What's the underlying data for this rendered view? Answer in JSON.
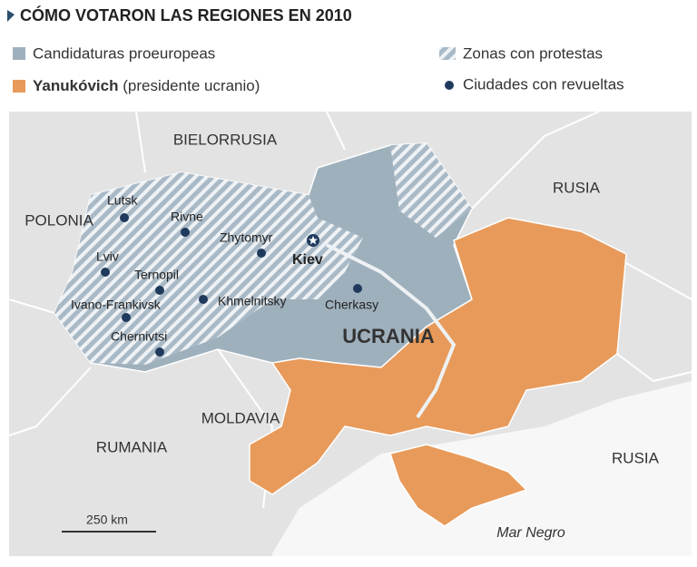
{
  "title": "CÓMO VOTARON LAS REGIONES EN 2010",
  "legend": [
    {
      "label": "Candidaturas proeuropeas"
    },
    {
      "label": "Zonas con protestas"
    },
    {
      "label_bold": "Yanukóvich",
      "label": "(presidente ucranio)"
    },
    {
      "label": "Ciudades con revueltas"
    }
  ],
  "map": {
    "countries": [
      "BIELORRUSIA",
      "RUSIA",
      "POLONIA",
      "MOLDAVIA",
      "RUMANIA",
      "RUSIA"
    ],
    "country": "UCRANIA",
    "capital": "Kiev",
    "cities": [
      "Lutsk",
      "Rivne",
      "Zhytomyr",
      "Lviv",
      "Ternopil",
      "Khmelnitsky",
      "Ivano-Frankivsk",
      "Chernivtsi",
      "Cherkasy"
    ],
    "scale": "250 km",
    "sea": "Mar Negro"
  }
}
